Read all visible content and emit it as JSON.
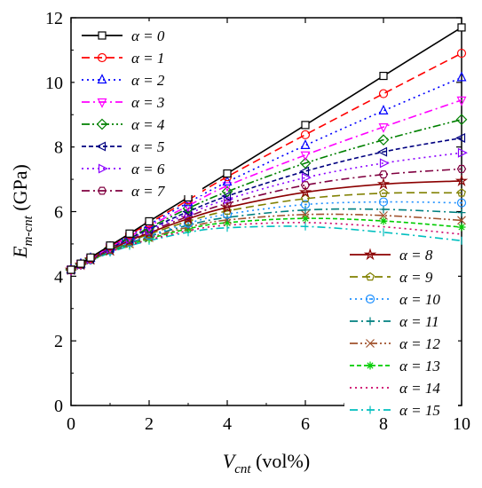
{
  "chart_data": {
    "type": "line",
    "xlabel": {
      "main": "V",
      "sub": "cnt",
      "unit": " (vol%)"
    },
    "ylabel": {
      "main": "E",
      "sub": "m-cnt",
      "unit": " (GPa)"
    },
    "xlim": [
      0,
      10
    ],
    "ylim": [
      0,
      12
    ],
    "xticks": [
      0,
      2,
      4,
      6,
      8,
      10
    ],
    "yticks": [
      0,
      2,
      4,
      6,
      8,
      10,
      12
    ],
    "x": [
      0,
      0.25,
      0.5,
      1,
      1.5,
      2,
      3,
      4,
      6,
      8,
      10
    ],
    "grid": false,
    "legend_placement": [
      "top-left",
      "bottom-right"
    ],
    "series": [
      {
        "name": "α = 0",
        "legend_group": 0,
        "color": "#000000",
        "dash": "solid",
        "marker": "square",
        "values": [
          4.2,
          4.39,
          4.58,
          4.95,
          5.32,
          5.7,
          6.44,
          7.18,
          8.68,
          10.2,
          11.7
        ]
      },
      {
        "name": "α = 1",
        "legend_group": 0,
        "color": "#ff0000",
        "dash": "dash",
        "marker": "circle",
        "values": [
          4.2,
          4.38,
          4.56,
          4.93,
          5.29,
          5.64,
          6.36,
          7.08,
          8.38,
          9.65,
          10.9
        ]
      },
      {
        "name": "α = 2",
        "legend_group": 0,
        "color": "#0000ff",
        "dash": "dot",
        "marker": "triangle-up",
        "values": [
          4.2,
          4.38,
          4.56,
          4.91,
          5.26,
          5.6,
          6.28,
          6.92,
          8.05,
          9.12,
          10.15
        ]
      },
      {
        "name": "α = 3",
        "legend_group": 0,
        "color": "#ff00ff",
        "dash": "dashdot",
        "marker": "triangle-down",
        "values": [
          4.2,
          4.38,
          4.55,
          4.9,
          5.23,
          5.55,
          6.18,
          6.8,
          7.75,
          8.62,
          9.45
        ]
      },
      {
        "name": "α = 4",
        "legend_group": 0,
        "color": "#008000",
        "dash": "dashdotdot",
        "marker": "diamond",
        "values": [
          4.2,
          4.37,
          4.54,
          4.88,
          5.2,
          5.5,
          6.1,
          6.62,
          7.5,
          8.22,
          8.85
        ]
      },
      {
        "name": "α = 5",
        "legend_group": 0,
        "color": "#000080",
        "dash": "dash-fine",
        "marker": "triangle-left",
        "values": [
          4.2,
          4.37,
          4.54,
          4.87,
          5.17,
          5.46,
          6.0,
          6.48,
          7.25,
          7.85,
          8.28
        ]
      },
      {
        "name": "α = 6",
        "legend_group": 0,
        "color": "#8b00ff",
        "dash": "dot",
        "marker": "triangle-right",
        "values": [
          4.2,
          4.37,
          4.53,
          4.85,
          5.15,
          5.42,
          5.93,
          6.38,
          7.05,
          7.5,
          7.82
        ]
      },
      {
        "name": "α = 7",
        "legend_group": 0,
        "color": "#800040",
        "dash": "dashdot",
        "marker": "hexagon",
        "values": [
          4.2,
          4.37,
          4.53,
          4.84,
          5.12,
          5.38,
          5.85,
          6.25,
          6.82,
          7.15,
          7.32
        ]
      },
      {
        "name": "α = 8",
        "legend_group": 1,
        "color": "#8b0000",
        "dash": "solid",
        "marker": "star",
        "values": [
          4.2,
          4.36,
          4.52,
          4.82,
          5.1,
          5.34,
          5.78,
          6.13,
          6.6,
          6.85,
          6.95
        ]
      },
      {
        "name": "α = 9",
        "legend_group": 1,
        "color": "#808000",
        "dash": "dash",
        "marker": "pentagon",
        "values": [
          4.2,
          4.36,
          4.51,
          4.81,
          5.07,
          5.3,
          5.7,
          6.02,
          6.4,
          6.57,
          6.58
        ]
      },
      {
        "name": "α = 10",
        "legend_group": 1,
        "color": "#1e90ff",
        "dash": "dot",
        "marker": "circle-dot",
        "values": [
          4.2,
          4.36,
          4.51,
          4.79,
          5.05,
          5.26,
          5.64,
          5.92,
          6.22,
          6.3,
          6.27
        ]
      },
      {
        "name": "α = 11",
        "legend_group": 1,
        "color": "#008080",
        "dash": "dashdot",
        "marker": "plus",
        "values": [
          4.2,
          4.35,
          4.5,
          4.78,
          5.02,
          5.23,
          5.58,
          5.82,
          6.05,
          6.07,
          5.97
        ]
      },
      {
        "name": "α = 12",
        "legend_group": 1,
        "color": "#a0522d",
        "dash": "dashdotdot",
        "marker": "x",
        "values": [
          4.2,
          4.35,
          4.5,
          4.77,
          5.0,
          5.19,
          5.52,
          5.74,
          5.91,
          5.88,
          5.73
        ]
      },
      {
        "name": "α = 13",
        "legend_group": 1,
        "color": "#00cc00",
        "dash": "dash-fine",
        "marker": "asterisk",
        "values": [
          4.2,
          4.35,
          4.49,
          4.76,
          4.98,
          5.16,
          5.47,
          5.66,
          5.79,
          5.71,
          5.52
        ]
      },
      {
        "name": "α = 14",
        "legend_group": 1,
        "color": "#cc0066",
        "dash": "dot",
        "marker": "none",
        "values": [
          4.2,
          4.35,
          4.49,
          4.75,
          4.96,
          5.13,
          5.41,
          5.58,
          5.66,
          5.53,
          5.3
        ]
      },
      {
        "name": "α = 15",
        "legend_group": 1,
        "color": "#00bfbf",
        "dash": "dashdot",
        "marker": "vbar",
        "values": [
          4.2,
          4.34,
          4.48,
          4.73,
          4.94,
          5.1,
          5.36,
          5.5,
          5.54,
          5.36,
          5.1
        ]
      }
    ]
  }
}
